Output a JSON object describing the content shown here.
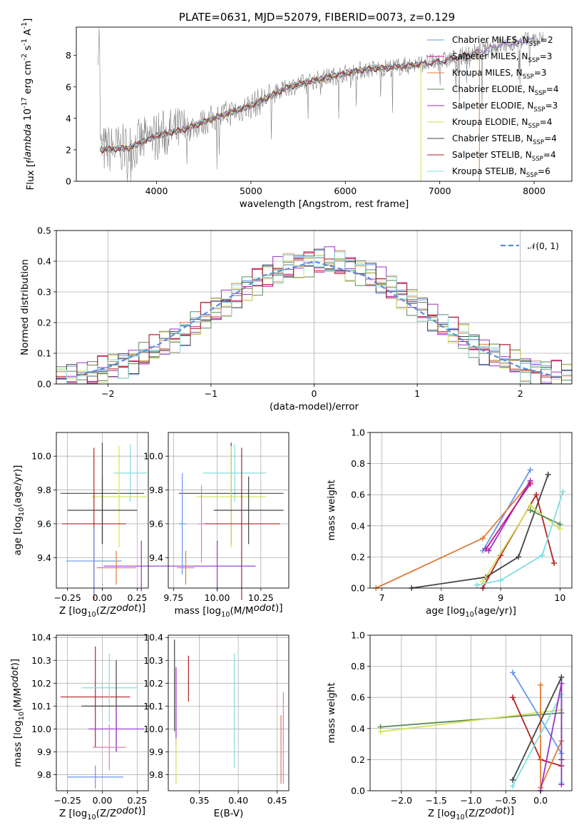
{
  "panels": [
    {
      "id": "spectrum",
      "title": "PLATE=0631, MJD=52079, FIBERID=0073, z=0.129",
      "xlabel": "wavelength [Angstrom, rest frame]",
      "ylabel": "Flux [f$_\\lambda$ 10$^{-17}$ erg cm$^{-2}$ s$^{-1}$ A$^{-1}$]",
      "xticks": [
        "4000",
        "5000",
        "6000",
        "7000",
        "8000"
      ],
      "yticks": [
        "0",
        "2",
        "4",
        "6",
        "8"
      ]
    },
    {
      "id": "residuals",
      "xlabel": "(data-model)/error",
      "ylabel": "Normed distribution",
      "xticks": [
        "−2",
        "−1",
        "0",
        "1",
        "2"
      ],
      "yticks": [
        "0.0",
        "0.1",
        "0.2",
        "0.3",
        "0.4",
        "0.5"
      ]
    },
    {
      "id": "age_vs_Z",
      "xlabel": "Z [log$_{10}$(Z/Z$_\\odot$)]",
      "ylabel": "age  [log$_{10}$(age/yr)]",
      "xticks": [
        "−0.25",
        "0.00",
        "0.25"
      ],
      "yticks": [
        "9.4",
        "9.6",
        "9.8",
        "10.0"
      ]
    },
    {
      "id": "age_vs_mass",
      "xlabel": "mass [log$_{10}$(M/M$_\\odot$)]",
      "ylabel": "",
      "xticks": [
        "9.75",
        "10.00",
        "10.25"
      ],
      "yticks": [
        "9.4",
        "9.6",
        "9.8",
        "10.0"
      ]
    },
    {
      "id": "massweight_vs_age",
      "xlabel": "age  [log$_{10}$(age/yr)]",
      "ylabel": "mass weight",
      "xticks": [
        "7",
        "8",
        "9",
        "10"
      ],
      "yticks": [
        "0.0",
        "0.2",
        "0.4",
        "0.6",
        "0.8",
        "1.0"
      ]
    },
    {
      "id": "mass_vs_Z",
      "xlabel": "Z [log$_{10}$(Z/Z$_\\odot$)]",
      "ylabel": "mass [log$_{10}$(M/M$_\\odot$)]",
      "xticks": [
        "−0.25",
        "0.00",
        "0.25"
      ],
      "yticks": [
        "9.8",
        "9.9",
        "10.0",
        "10.1",
        "10.2",
        "10.3",
        "10.4"
      ]
    },
    {
      "id": "mass_vs_ebv",
      "xlabel": "E(B-V)",
      "ylabel": "",
      "xticks": [
        "0.35",
        "0.40",
        "0.45"
      ],
      "yticks": [
        "9.8",
        "9.9",
        "10.0",
        "10.1",
        "10.2",
        "10.3",
        "10.4"
      ]
    },
    {
      "id": "massweight_vs_Z",
      "xlabel": "Z [log$_{10}$(Z/Z$_\\odot$)]",
      "ylabel": "mass weight",
      "xticks": [
        "−2.0",
        "−1.5",
        "−1.0",
        "−0.5",
        "0.0"
      ],
      "yticks": [
        "0.0",
        "0.2",
        "0.4",
        "0.6",
        "0.8",
        "1.0"
      ]
    }
  ],
  "legend_normal": "$\\mathcal{N}(0,1)$",
  "chart_data": [
    {
      "type": "line",
      "panel": "spectrum",
      "title": "PLATE=0631, MJD=52079, FIBERID=0073, z=0.129",
      "xlabel": "wavelength [Angstrom, rest frame]",
      "ylabel": "Flux [f$_\\lambda$ 10$^{-17}$ erg cm$^{-2}$ s$^{-1}$ A$^{-1}$]",
      "xlim": [
        3150,
        8400
      ],
      "ylim": [
        0,
        9.8
      ],
      "grid": false,
      "legend": "top-right",
      "series": [
        {
          "name": "Chabrier MILES, N$_{SSP}$=2",
          "color": "#6495ed",
          "x": [
            3400,
            3700,
            4000,
            4300,
            4600,
            5000,
            5400,
            5800,
            6200,
            6600,
            7000,
            7400,
            7600,
            8000
          ],
          "y": [
            2.0,
            2.1,
            2.9,
            3.3,
            4.0,
            4.8,
            6.0,
            6.6,
            7.1,
            7.3,
            7.6,
            8.2,
            8.6,
            9.0
          ]
        },
        {
          "name": "Salpeter MILES, N$_{SSP}$=3",
          "color": "#c71585",
          "x": [
            3400,
            3700,
            4000,
            4300,
            4600,
            5000,
            5400,
            5800,
            6200,
            6600,
            7000,
            7400,
            7600,
            8000
          ],
          "y": [
            2.0,
            2.1,
            2.9,
            3.3,
            4.0,
            4.8,
            6.0,
            6.6,
            7.1,
            7.3,
            7.6,
            8.2,
            8.6,
            9.0
          ]
        },
        {
          "name": "Kroupa MILES, N$_{SSP}$=3",
          "color": "#e07b39",
          "x": [
            3400,
            3700,
            4000,
            4300,
            4600,
            5000,
            5400,
            5800,
            6200,
            6600,
            7000,
            7400,
            7600,
            8000
          ],
          "y": [
            2.0,
            2.1,
            2.9,
            3.3,
            4.0,
            4.8,
            6.0,
            6.6,
            7.1,
            7.3,
            7.6,
            8.2,
            8.6,
            9.0
          ]
        },
        {
          "name": "Chabrier ELODIE, N$_{SSP}$=4",
          "color": "#5a8a5a",
          "x": [
            3400,
            3700,
            4000,
            4300,
            4600,
            5000,
            5400,
            5800,
            6200,
            6600,
            6800
          ],
          "y": [
            2.0,
            2.1,
            2.9,
            3.3,
            4.0,
            4.8,
            6.0,
            6.6,
            7.1,
            7.3,
            7.4
          ]
        },
        {
          "name": "Salpeter ELODIE, N$_{SSP}$=3",
          "color": "#9932cc",
          "x": [
            3400,
            3700,
            4000,
            4300,
            4600,
            5000,
            5400,
            5800,
            6200,
            6600,
            6800
          ],
          "y": [
            2.0,
            2.1,
            2.9,
            3.3,
            4.0,
            4.8,
            6.0,
            6.6,
            7.1,
            7.3,
            7.4
          ]
        },
        {
          "name": "Kroupa ELODIE, N$_{SSP}$=4",
          "color": "#d4e157",
          "x": [
            3400,
            3700,
            4000,
            4300,
            4600,
            5000,
            5400,
            5800,
            6200,
            6600,
            6800
          ],
          "y": [
            2.0,
            2.1,
            2.9,
            3.3,
            4.0,
            4.8,
            6.0,
            6.6,
            7.1,
            7.3,
            7.4
          ]
        },
        {
          "name": "Chabrier STELIB, N$_{SSP}$=4",
          "color": "#444444",
          "x": [
            3400,
            3700,
            4000,
            4300,
            4600,
            5000,
            5400,
            5800,
            6200,
            6600,
            7000,
            7400
          ],
          "y": [
            2.0,
            2.1,
            2.9,
            3.3,
            4.0,
            4.8,
            6.0,
            6.6,
            7.1,
            7.3,
            7.6,
            8.2
          ]
        },
        {
          "name": "Salpeter STELIB, N$_{SSP}$=4",
          "color": "#b22222",
          "x": [
            3400,
            3700,
            4000,
            4300,
            4600,
            5000,
            5400,
            5800,
            6200,
            6600,
            7000,
            7400
          ],
          "y": [
            2.0,
            2.1,
            2.9,
            3.3,
            4.0,
            4.8,
            6.0,
            6.6,
            7.1,
            7.3,
            7.6,
            8.2
          ]
        },
        {
          "name": "Kroupa STELIB, N$_{SSP}$=6",
          "color": "#80dede",
          "x": [
            3400,
            3700,
            4000,
            4300,
            4600,
            5000,
            5400,
            5800,
            6200,
            6600,
            7000,
            7400,
            7600,
            8000
          ],
          "y": [
            2.0,
            2.1,
            2.9,
            3.3,
            4.0,
            4.8,
            6.0,
            6.6,
            7.1,
            7.3,
            7.6,
            8.2,
            8.6,
            9.0
          ]
        }
      ]
    },
    {
      "type": "line",
      "panel": "residuals",
      "xlabel": "(data-model)/error",
      "ylabel": "Normed distribution",
      "xlim": [
        -2.5,
        2.5
      ],
      "ylim": [
        0,
        0.5
      ],
      "grid": true,
      "legend": "top-right",
      "series": [
        {
          "name": "$\\mathcal{N}(0,1)$",
          "color": "#5b8fd6",
          "style": "dashed",
          "x": [
            -2.3,
            -2.0,
            -1.5,
            -1.0,
            -0.5,
            0.0,
            0.5,
            1.0,
            1.5,
            2.0,
            2.3
          ],
          "y": [
            0.028,
            0.054,
            0.13,
            0.242,
            0.352,
            0.399,
            0.352,
            0.242,
            0.13,
            0.054,
            0.028
          ]
        },
        {
          "name": "",
          "color": "#808080",
          "style": "step",
          "x": [
            -2.5,
            -2.3,
            -2.1,
            -1.9,
            -1.7,
            -1.5,
            -1.3,
            -1.1,
            -0.9,
            -0.7,
            -0.5,
            -0.3,
            -0.1,
            0.1,
            0.3,
            0.5,
            0.7,
            0.9,
            1.1,
            1.3,
            1.5,
            1.7,
            1.9,
            2.1,
            2.3,
            2.5
          ],
          "y": [
            0.03,
            0.05,
            0.07,
            0.09,
            0.13,
            0.18,
            0.23,
            0.27,
            0.33,
            0.37,
            0.39,
            0.42,
            0.44,
            0.43,
            0.41,
            0.39,
            0.35,
            0.3,
            0.24,
            0.19,
            0.14,
            0.1,
            0.07,
            0.05,
            0.03,
            0.02
          ]
        }
      ]
    },
    {
      "type": "scatter",
      "panel": "age_vs_Z",
      "xlabel": "Z [log$_{10}$(Z/Z$_\\odot$)]",
      "ylabel": "age  [log$_{10}$(age/yr)]",
      "xlim": [
        -0.33,
        0.33
      ],
      "ylim": [
        9.22,
        10.14
      ],
      "grid": true,
      "series": [
        {
          "color": "#80dede",
          "x": 0.2,
          "y": 9.9,
          "xerr": 0.12,
          "yerr": 0.17
        },
        {
          "color": "#444444",
          "x": 0.0,
          "y": 9.78,
          "xerr": 0.3,
          "yerr": 0.3
        },
        {
          "color": "#d4e157",
          "x": 0.12,
          "y": 9.76,
          "xerr": 0.2,
          "yerr": 0.3
        },
        {
          "color": "#444444",
          "x": 0.0,
          "y": 9.68,
          "xerr": 0.25,
          "yerr": 0.2
        },
        {
          "color": "#b22222",
          "x": -0.06,
          "y": 9.6,
          "xerr": 0.23,
          "yerr": 0.45
        },
        {
          "color": "#6495ed",
          "x": -0.06,
          "y": 9.38,
          "xerr": 0.2,
          "yerr": 0.2
        },
        {
          "color": "#9932cc",
          "x": 0.28,
          "y": 9.35,
          "xerr": 0.27,
          "yerr": 0.15
        },
        {
          "color": "#e07b39",
          "x": 0.1,
          "y": 9.34,
          "xerr": 0.14,
          "yerr": 0.1
        }
      ]
    },
    {
      "type": "scatter",
      "panel": "age_vs_mass",
      "xlabel": "mass [log$_{10}$(M/M$_\\odot$)]",
      "xlim": [
        9.72,
        10.41
      ],
      "ylim": [
        9.22,
        10.14
      ],
      "grid": true,
      "series": [
        {
          "color": "#80dede",
          "x": 10.1,
          "y": 9.9,
          "xerr": 0.18,
          "yerr": 0.17
        },
        {
          "color": "#444444",
          "x": 10.08,
          "y": 9.78,
          "xerr": 0.3,
          "yerr": 0.3
        },
        {
          "color": "#d4e157",
          "x": 10.08,
          "y": 9.76,
          "xerr": 0.2,
          "yerr": 0.3
        },
        {
          "color": "#444444",
          "x": 10.18,
          "y": 9.68,
          "xerr": 0.2,
          "yerr": 0.2
        },
        {
          "color": "#b22222",
          "x": 10.14,
          "y": 9.6,
          "xerr": 0.22,
          "yerr": 0.45
        },
        {
          "color": "#9932cc",
          "x": 10.0,
          "y": 9.35,
          "xerr": 0.22,
          "yerr": 0.15
        },
        {
          "color": "#e07b39",
          "x": 9.82,
          "y": 9.34,
          "xerr": 0.05,
          "yerr": 0.1
        },
        {
          "color": "#e377c2",
          "x": 9.91,
          "y": 9.6,
          "xerr": 0.02,
          "yerr": 0.23
        },
        {
          "color": "#6495ed",
          "x": 9.8,
          "y": 9.6,
          "xerr": 0.02,
          "yerr": 0.3
        }
      ]
    },
    {
      "type": "line",
      "panel": "massweight_vs_age",
      "xlabel": "age  [log$_{10}$(age/yr)]",
      "ylabel": "mass weight",
      "xlim": [
        6.8,
        10.2
      ],
      "ylim": [
        0,
        1
      ],
      "grid": true,
      "series": [
        {
          "color": "#6495ed",
          "x": [
            8.7,
            9.5
          ],
          "y": [
            0.24,
            0.76
          ]
        },
        {
          "color": "#e07b39",
          "x": [
            6.9,
            8.7,
            9.5
          ],
          "y": [
            0.0,
            0.32,
            0.68
          ]
        },
        {
          "color": "#9932cc",
          "x": [
            8.8,
            9.5
          ],
          "y": [
            0.24,
            0.69
          ]
        },
        {
          "color": "#c71585",
          "x": [
            8.75,
            9.5
          ],
          "y": [
            0.25,
            0.67
          ]
        },
        {
          "color": "#444444",
          "x": [
            7.5,
            8.75,
            9.3,
            9.8
          ],
          "y": [
            0.0,
            0.07,
            0.2,
            0.73
          ]
        },
        {
          "color": "#b22222",
          "x": [
            8.7,
            9.0,
            9.6,
            9.9
          ],
          "y": [
            0.0,
            0.21,
            0.6,
            0.16
          ]
        },
        {
          "color": "#d4e157",
          "x": [
            8.7,
            9.5,
            10.0
          ],
          "y": [
            0.04,
            0.53,
            0.38
          ]
        },
        {
          "color": "#5a8a5a",
          "x": [
            9.5,
            10.0
          ],
          "y": [
            0.5,
            0.41
          ]
        },
        {
          "color": "#80dede",
          "x": [
            8.6,
            9.0,
            9.7,
            10.05
          ],
          "y": [
            0.02,
            0.05,
            0.21,
            0.62
          ]
        }
      ]
    },
    {
      "type": "scatter",
      "panel": "mass_vs_Z",
      "xlabel": "Z [log$_{10}$(Z/Z$_\\odot$)]",
      "ylabel": "mass [log$_{10}$(M/M$_\\odot$)]",
      "xlim": [
        -0.33,
        0.33
      ],
      "ylim": [
        9.73,
        10.41
      ],
      "grid": true,
      "series": [
        {
          "color": "#b22222",
          "x": -0.05,
          "y": 10.14,
          "xerr": 0.25,
          "yerr": 0.22
        },
        {
          "color": "#80dede",
          "x": 0.05,
          "y": 10.18,
          "xerr": 0.2,
          "yerr": 0.15
        },
        {
          "color": "#444444",
          "x": 0.1,
          "y": 10.1,
          "xerr": 0.25,
          "yerr": 0.2
        },
        {
          "color": "#9932cc",
          "x": 0.1,
          "y": 10.0,
          "xerr": 0.2,
          "yerr": 0.1
        },
        {
          "color": "#e377c2",
          "x": 0.05,
          "y": 9.92,
          "xerr": 0.12,
          "yerr": 0.1
        },
        {
          "color": "#6495ed",
          "x": -0.05,
          "y": 9.79,
          "xerr": 0.2,
          "yerr": 0.05
        }
      ]
    },
    {
      "type": "scatter",
      "panel": "mass_vs_ebv",
      "xlabel": "E(B-V)",
      "xlim": [
        0.31,
        0.465
      ],
      "ylim": [
        9.73,
        10.41
      ],
      "grid": true,
      "series": [
        {
          "color": "#444444",
          "x": 0.318,
          "y": 10.19,
          "yerr": 0.2
        },
        {
          "color": "#9932cc",
          "x": 0.32,
          "y": 10.1,
          "yerr": 0.17
        },
        {
          "color": "#d4e157",
          "x": 0.32,
          "y": 9.86,
          "yerr": 0.1
        },
        {
          "color": "#b22222",
          "x": 0.336,
          "y": 10.22,
          "yerr": 0.1
        },
        {
          "color": "#80dede",
          "x": 0.395,
          "y": 10.08,
          "yerr": 0.25
        },
        {
          "color": "#e07b39",
          "x": 0.455,
          "y": 9.91,
          "yerr": 0.15
        },
        {
          "color": "#e377c2",
          "x": 0.458,
          "y": 9.96,
          "yerr": 0.2
        }
      ]
    },
    {
      "type": "line",
      "panel": "massweight_vs_Z",
      "xlabel": "Z [log$_{10}$(Z/Z$_\\odot$)]",
      "ylabel": "mass weight",
      "xlim": [
        -2.45,
        0.45
      ],
      "ylim": [
        0,
        1
      ],
      "grid": true,
      "series": [
        {
          "color": "#5a8a5a",
          "x": [
            -2.3,
            0.3
          ],
          "y": [
            0.41,
            0.5
          ]
        },
        {
          "color": "#d4e157",
          "x": [
            -2.3,
            0.3
          ],
          "y": [
            0.38,
            0.52
          ]
        },
        {
          "color": "#6495ed",
          "x": [
            -0.4,
            0.3
          ],
          "y": [
            0.76,
            0.24
          ]
        },
        {
          "color": "#b22222",
          "x": [
            -0.4,
            0.0,
            0.3
          ],
          "y": [
            0.6,
            0.2,
            0.16
          ]
        },
        {
          "color": "#e07b39",
          "x": [
            0.0,
            0.0,
            0.3
          ],
          "y": [
            0.68,
            0.02,
            0.32
          ]
        },
        {
          "color": "#444444",
          "x": [
            -0.4,
            0.3,
            0.3
          ],
          "y": [
            0.07,
            0.73,
            0.2
          ]
        },
        {
          "color": "#80dede",
          "x": [
            -0.4,
            0.3,
            0.3
          ],
          "y": [
            0.03,
            0.62,
            0.05
          ]
        },
        {
          "color": "#9932cc",
          "x": [
            0.0,
            0.3,
            0.3
          ],
          "y": [
            0.0,
            0.69,
            0.04
          ]
        }
      ]
    }
  ]
}
